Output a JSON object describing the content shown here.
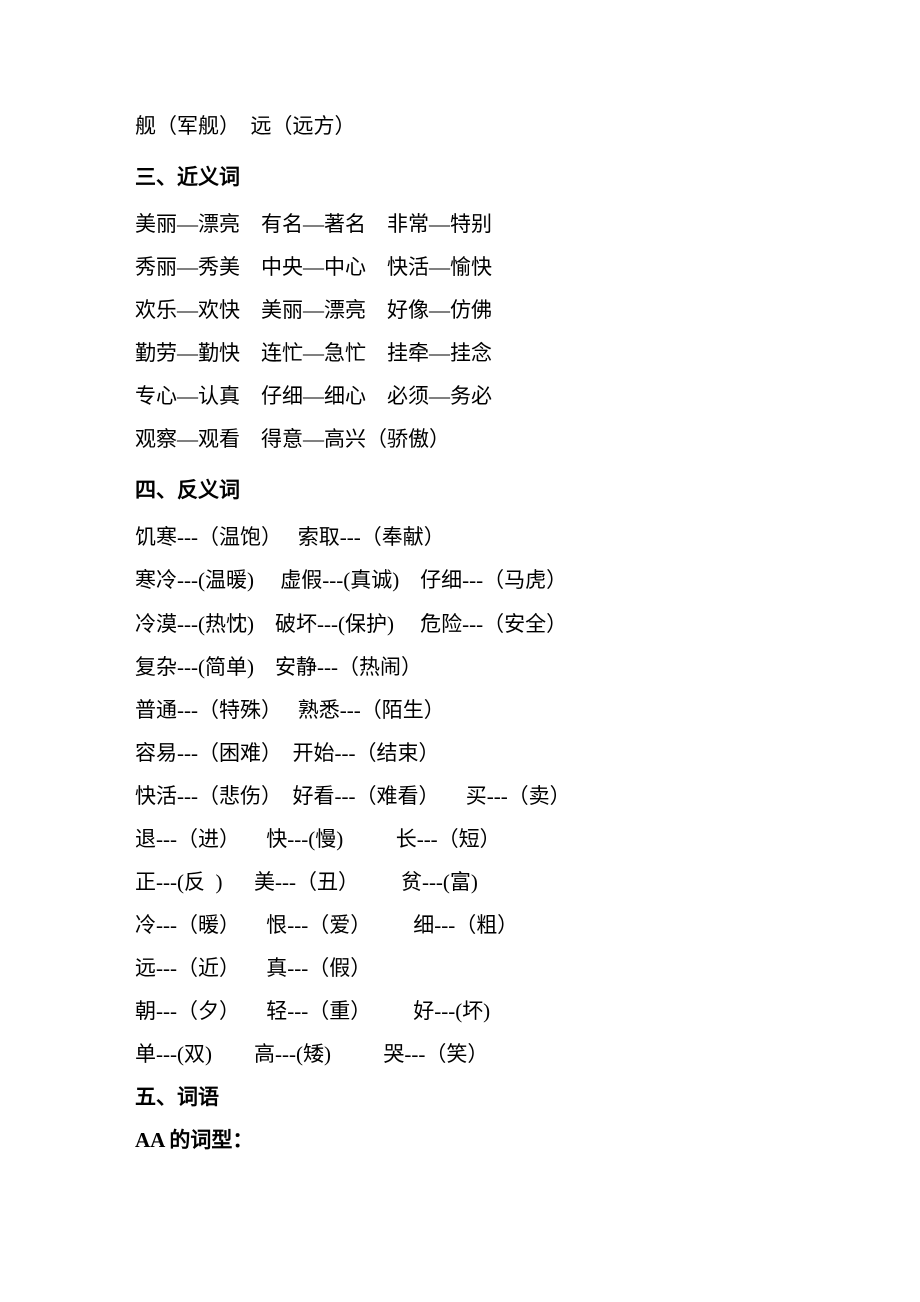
{
  "intro": "舰（军舰）  远（远方）",
  "section3": {
    "title": "三、近义词",
    "lines": [
      "美丽—漂亮    有名—著名    非常—特别",
      "秀丽—秀美    中央—中心    快活—愉快",
      "欢乐—欢快    美丽—漂亮    好像—仿佛",
      "勤劳—勤快    连忙—急忙    挂牵—挂念",
      "专心—认真    仔细—细心    必须—务必",
      "观察—观看    得意—高兴（骄傲）"
    ]
  },
  "section4": {
    "title": "四、反义词",
    "lines": [
      "饥寒---（温饱）   索取---（奉献）",
      "寒冷---(温暖)     虚假---(真诚)    仔细---（马虎）",
      "冷漠---(热忱)    破坏---(保护)     危险---（安全）",
      "复杂---(简单)    安静---（热闹）",
      "普通---（特殊）   熟悉---（陌生）",
      "容易---（困难）  开始---（结束）",
      "快活---（悲伤）  好看---（难看）     买---（卖）",
      "退---（进）     快---(慢)          长---（短）",
      "正---(反  )      美---（丑）        贫---(富)",
      "冷---（暖）     恨---（爱）        细---（粗）",
      "远---（近）     真---（假）",
      "朝---（夕）     轻---（重）        好---(坏)",
      "单---(双)        高---(矮)          哭---（笑）"
    ]
  },
  "section5": {
    "title": "五、词语",
    "subtitle": "AA 的词型："
  }
}
